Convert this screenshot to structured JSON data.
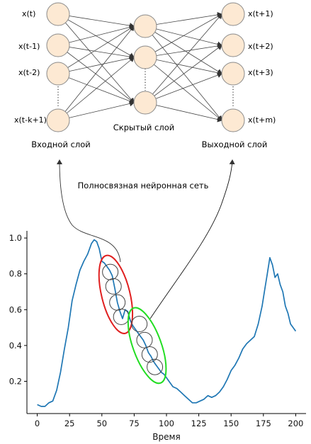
{
  "network": {
    "input_labels": [
      "x(t)",
      "x(t-1)",
      "x(t-2)",
      "x(t-k+1)"
    ],
    "output_labels": [
      "x(t+1)",
      "x(t+2)",
      "x(t+3)",
      "x(t+m)"
    ],
    "hidden_label": "Скрытый слой",
    "input_layer_label": "Входной слой",
    "output_layer_label": "Выходной слой",
    "title": "Полносвязная нейронная сеть",
    "node_color": "#fde9d3",
    "edge_color": "#444444"
  },
  "chart_data": {
    "type": "line",
    "xlabel": "Время",
    "ylabel": "",
    "xlim": [
      -8,
      208
    ],
    "ylim": [
      0.02,
      1.04
    ],
    "xticks": [
      0,
      25,
      50,
      75,
      100,
      125,
      150,
      175,
      200
    ],
    "yticks": [
      0.2,
      0.4,
      0.6,
      0.8,
      1.0
    ],
    "line_color": "#1f77b4",
    "x": [
      0,
      3,
      6,
      9,
      12,
      15,
      18,
      21,
      24,
      27,
      30,
      33,
      36,
      39,
      42,
      44,
      46,
      48,
      50,
      52,
      54,
      56,
      58,
      60,
      62,
      64,
      66,
      68,
      70,
      72,
      74,
      76,
      78,
      80,
      82,
      84,
      86,
      88,
      90,
      92,
      94,
      96,
      98,
      100,
      102,
      105,
      108,
      111,
      114,
      117,
      120,
      123,
      126,
      129,
      132,
      135,
      138,
      141,
      144,
      147,
      150,
      153,
      156,
      159,
      162,
      165,
      168,
      171,
      174,
      176,
      178,
      180,
      182,
      184,
      186,
      188,
      190,
      192,
      194,
      196,
      198,
      200
    ],
    "y": [
      0.07,
      0.06,
      0.06,
      0.08,
      0.09,
      0.15,
      0.25,
      0.38,
      0.5,
      0.65,
      0.74,
      0.82,
      0.87,
      0.91,
      0.97,
      0.99,
      0.98,
      0.94,
      0.87,
      0.86,
      0.84,
      0.82,
      0.79,
      0.72,
      0.64,
      0.59,
      0.55,
      0.6,
      0.59,
      0.54,
      0.51,
      0.49,
      0.47,
      0.45,
      0.43,
      0.4,
      0.36,
      0.34,
      0.31,
      0.29,
      0.27,
      0.25,
      0.24,
      0.22,
      0.2,
      0.17,
      0.16,
      0.14,
      0.12,
      0.1,
      0.08,
      0.08,
      0.09,
      0.1,
      0.12,
      0.11,
      0.12,
      0.14,
      0.17,
      0.21,
      0.26,
      0.29,
      0.33,
      0.38,
      0.41,
      0.43,
      0.45,
      0.52,
      0.62,
      0.71,
      0.8,
      0.89,
      0.85,
      0.78,
      0.8,
      0.74,
      0.7,
      0.62,
      0.58,
      0.52,
      0.5,
      0.48
    ],
    "red_window_circles": [
      [
        56.5,
        0.81
      ],
      [
        59,
        0.73
      ],
      [
        62,
        0.64
      ],
      [
        65,
        0.56
      ]
    ],
    "green_window_circles": [
      [
        79,
        0.52
      ],
      [
        83,
        0.43
      ],
      [
        87,
        0.35
      ],
      [
        91,
        0.28
      ]
    ]
  }
}
